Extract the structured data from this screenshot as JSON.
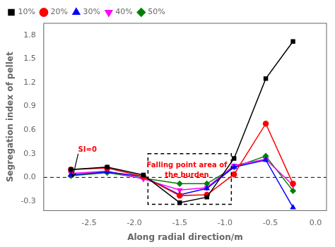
{
  "chart_data": {
    "type": "line",
    "x": [
      -2.7,
      -2.3,
      -1.9,
      -1.5,
      -1.2,
      -0.9,
      -0.55,
      -0.25
    ],
    "series": [
      {
        "name": "10%",
        "color": "#000000",
        "marker": "square",
        "values": [
          0.1,
          0.13,
          0.03,
          -0.32,
          -0.25,
          0.24,
          1.25,
          1.72
        ]
      },
      {
        "name": "20%",
        "color": "#ff0000",
        "marker": "circle",
        "values": [
          0.1,
          0.12,
          0.01,
          -0.23,
          -0.22,
          0.04,
          0.68,
          -0.08
        ]
      },
      {
        "name": "30%",
        "color": "#0000ff",
        "marker": "triangle-up",
        "values": [
          0.03,
          0.07,
          0.01,
          -0.22,
          -0.14,
          0.13,
          0.22,
          -0.38
        ]
      },
      {
        "name": "40%",
        "color": "#ff00ff",
        "marker": "triangle-down",
        "values": [
          0.05,
          0.08,
          -0.02,
          -0.16,
          -0.13,
          0.15,
          0.23,
          -0.1
        ]
      },
      {
        "name": "50%",
        "color": "#008000",
        "marker": "diamond",
        "values": [
          0.02,
          0.06,
          -0.01,
          -0.08,
          -0.08,
          0.13,
          0.27,
          -0.17
        ]
      }
    ],
    "xlabel": "Along radial direction/m",
    "ylabel": "Segregation index of pellet",
    "xlim": [
      -3.0,
      0.12
    ],
    "ylim": [
      -0.42,
      1.95
    ],
    "xticks": [
      -2.5,
      {
        "value": -2.0,
        "label": "-2.0"
      },
      -1.5,
      {
        "value": -1.0,
        "label": "-1.0"
      },
      -0.5,
      {
        "value": 0.0,
        "label": "0.0"
      }
    ],
    "yticks": [
      -0.3,
      {
        "value": 0.0,
        "label": "0.0"
      },
      0.3,
      0.6,
      0.9,
      1.2,
      1.5,
      1.8
    ],
    "grid": false,
    "legend": "upper left",
    "reference_lines": [
      {
        "y": 0,
        "color": "#000000",
        "line_style": "dashed"
      }
    ],
    "boxes": [
      {
        "x0": -1.85,
        "x1": -0.93,
        "y0": -0.34,
        "y1": 0.3,
        "color": "#000000",
        "line_style": "dashed"
      }
    ],
    "annotations": [
      {
        "text": "SI=0",
        "x": -2.62,
        "y": 0.3,
        "arrow_x": -2.68,
        "arrow_y": 0.005,
        "color": "#ff0000"
      },
      {
        "text": "Falling point area of\nthe burden",
        "x": -1.42,
        "y": 0.09,
        "color": "#ff0000"
      }
    ]
  }
}
